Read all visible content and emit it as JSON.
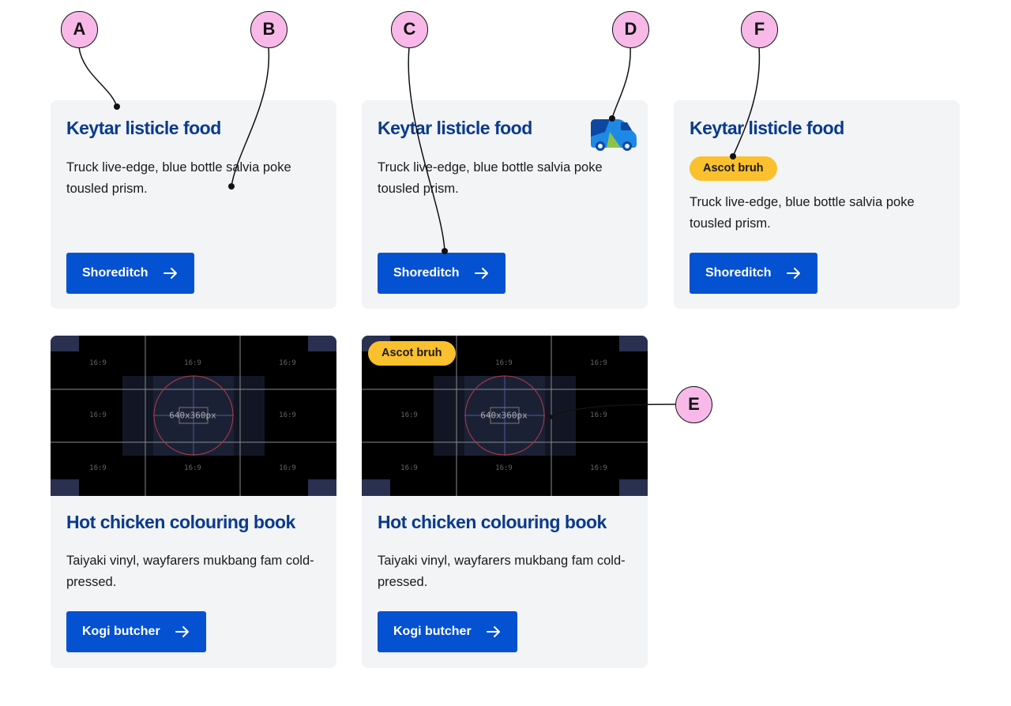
{
  "cards_top": [
    {
      "title": "Keytar listicle food",
      "desc": "Truck live-edge, blue bottle salvia poke tousled prism.",
      "button": "Shoreditch"
    },
    {
      "title": "Keytar listicle food",
      "desc": "Truck live-edge, blue bottle salvia poke tousled prism.",
      "button": "Shoreditch",
      "icon": "van-icon"
    },
    {
      "title": "Keytar listicle food",
      "badge": "Ascot bruh",
      "desc": "Truck live-edge, blue bottle salvia poke tousled prism.",
      "button": "Shoreditch"
    }
  ],
  "cards_bottom": [
    {
      "title": "Hot chicken colouring book",
      "desc": "Taiyaki vinyl, wayfarers mukbang fam cold-pressed.",
      "button": "Kogi butcher"
    },
    {
      "title": "Hot chicken colouring book",
      "badge": "Ascot bruh",
      "desc": "Taiyaki vinyl, wayfarers mukbang fam cold-pressed.",
      "button": "Kogi butcher"
    }
  ],
  "placeholder": {
    "ratio": "16:9",
    "size": "640x360px"
  },
  "callouts": {
    "a": "A",
    "b": "B",
    "c": "C",
    "d": "D",
    "e": "E",
    "f": "F"
  },
  "colors": {
    "title": "#0a3a8c",
    "button": "#0451d1",
    "badge": "#fbc02d",
    "card": "#f2f4f6",
    "callout": "#f8b9e9"
  }
}
